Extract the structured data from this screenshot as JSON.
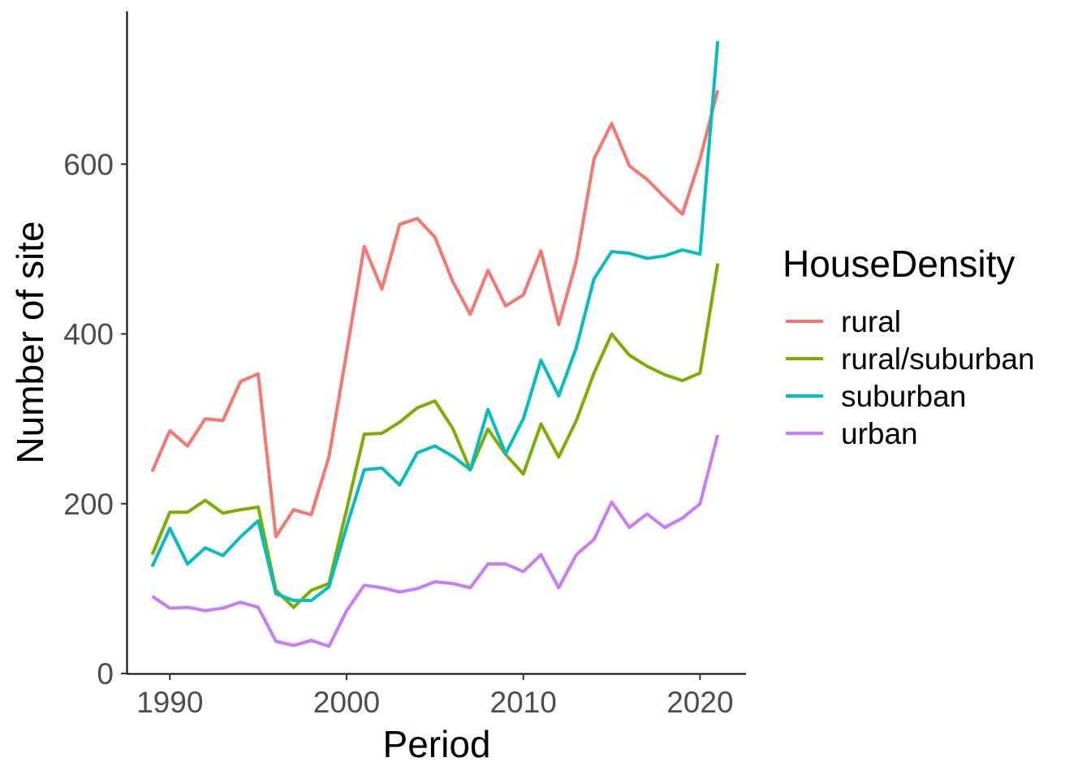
{
  "chart_data": {
    "type": "line",
    "title": "",
    "xlabel": "Period",
    "ylabel": "Number of site",
    "xlim": [
      1987.6,
      2022.6
    ],
    "ylim": [
      0,
      780
    ],
    "x_ticks": [
      1990,
      2000,
      2010,
      2020
    ],
    "y_ticks": [
      0,
      200,
      400,
      600
    ],
    "x_tick_labels": [
      "1990",
      "2000",
      "2010",
      "2020"
    ],
    "y_tick_labels": [
      "0",
      "200",
      "400",
      "600"
    ],
    "grid": false,
    "legend": {
      "title": "HouseDensity",
      "placement": "right"
    },
    "x": [
      1989,
      1990,
      1991,
      1992,
      1993,
      1994,
      1995,
      1996,
      1997,
      1998,
      1999,
      2000,
      2001,
      2002,
      2003,
      2004,
      2005,
      2006,
      2007,
      2008,
      2009,
      2010,
      2011,
      2012,
      2013,
      2014,
      2015,
      2016,
      2017,
      2018,
      2019,
      2020,
      2021
    ],
    "series": [
      {
        "name": "rural",
        "color": "#F8766D",
        "values": [
          238,
          286,
          268,
          300,
          298,
          344,
          353,
          161,
          193,
          187,
          255,
          378,
          503,
          453,
          529,
          536,
          514,
          462,
          423,
          475,
          433,
          446,
          498,
          411,
          486,
          606,
          648,
          598,
          582,
          561,
          541,
          606,
          687
        ]
      },
      {
        "name": "rural/suburban",
        "color": "#7CAE00",
        "values": [
          140,
          190,
          190,
          204,
          189,
          193,
          196,
          98,
          78,
          98,
          106,
          193,
          282,
          283,
          296,
          313,
          321,
          289,
          240,
          288,
          258,
          235,
          294,
          255,
          298,
          354,
          400,
          375,
          362,
          352,
          345,
          354,
          483
        ]
      },
      {
        "name": "suburban",
        "color": "#00BFC4",
        "values": [
          126,
          171,
          129,
          148,
          139,
          161,
          180,
          94,
          86,
          86,
          102,
          173,
          240,
          242,
          222,
          260,
          268,
          256,
          240,
          311,
          259,
          300,
          369,
          327,
          384,
          465,
          497,
          495,
          489,
          492,
          499,
          494,
          745
        ]
      },
      {
        "name": "urban",
        "color": "#C77CFF",
        "values": [
          91,
          77,
          78,
          74,
          77,
          84,
          78,
          38,
          33,
          39,
          32,
          74,
          104,
          101,
          96,
          100,
          108,
          106,
          101,
          129,
          129,
          120,
          140,
          101,
          140,
          158,
          202,
          172,
          188,
          172,
          183,
          200,
          281
        ]
      }
    ]
  }
}
